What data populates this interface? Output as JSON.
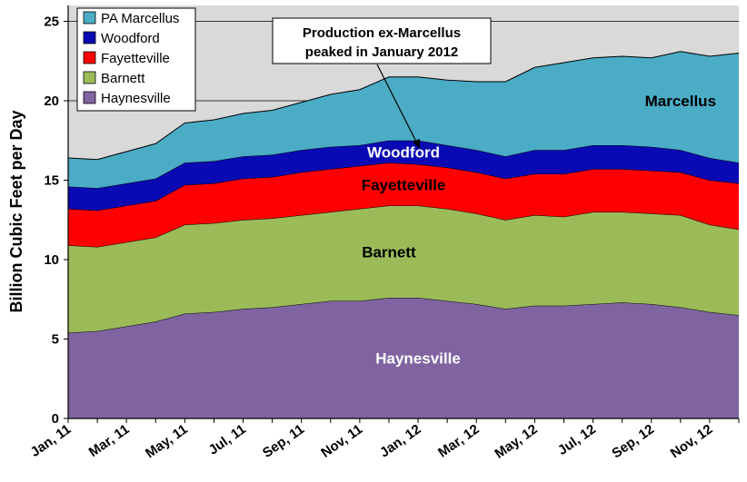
{
  "chart_data": {
    "type": "area",
    "stacked": true,
    "title": "",
    "xlabel": "",
    "ylabel": "Billion Cubic Feet per Day",
    "ylim": [
      0,
      26
    ],
    "yticks": [
      0,
      5,
      10,
      15,
      20,
      25
    ],
    "grid": "horizontal",
    "legend_position": "top-left",
    "x_tick_labels": [
      "Jan, 11",
      "Mar, 11",
      "May, 11",
      "Jul, 11",
      "Sep, 11",
      "Nov, 11",
      "Jan, 12",
      "Mar, 12",
      "May, 12",
      "Jul, 12",
      "Sep, 12",
      "Nov, 12"
    ],
    "x_months": [
      "Jan 2011",
      "Feb 2011",
      "Mar 2011",
      "Apr 2011",
      "May 2011",
      "Jun 2011",
      "Jul 2011",
      "Aug 2011",
      "Sep 2011",
      "Oct 2011",
      "Nov 2011",
      "Dec 2011",
      "Jan 2012",
      "Feb 2012",
      "Mar 2012",
      "Apr 2012",
      "May 2012",
      "Jun 2012",
      "Jul 2012",
      "Aug 2012",
      "Sep 2012",
      "Oct 2012",
      "Nov 2012",
      "Dec 2012"
    ],
    "series": [
      {
        "name": "Haynesville",
        "color": "#8064A2",
        "label_value": "Haynesville",
        "values": [
          5.4,
          5.5,
          5.8,
          6.1,
          6.6,
          6.7,
          6.9,
          7.0,
          7.2,
          7.4,
          7.4,
          7.6,
          7.6,
          7.4,
          7.2,
          6.9,
          7.1,
          7.1,
          7.2,
          7.3,
          7.2,
          7.0,
          6.7,
          6.5
        ]
      },
      {
        "name": "Barnett",
        "color": "#9BBB59",
        "label_value": "Barnett",
        "values": [
          5.5,
          5.3,
          5.3,
          5.3,
          5.6,
          5.6,
          5.6,
          5.6,
          5.6,
          5.6,
          5.8,
          5.8,
          5.8,
          5.8,
          5.7,
          5.6,
          5.7,
          5.6,
          5.8,
          5.7,
          5.7,
          5.8,
          5.5,
          5.4
        ]
      },
      {
        "name": "Fayetteville",
        "color": "#FF0000",
        "label_value": "Fayetteville",
        "values": [
          2.3,
          2.3,
          2.3,
          2.3,
          2.5,
          2.5,
          2.6,
          2.6,
          2.7,
          2.7,
          2.7,
          2.7,
          2.6,
          2.6,
          2.6,
          2.6,
          2.6,
          2.7,
          2.7,
          2.7,
          2.7,
          2.7,
          2.8,
          2.9
        ]
      },
      {
        "name": "Woodford",
        "color": "#0A0AB4",
        "label_value": "Woodford",
        "values": [
          1.4,
          1.4,
          1.4,
          1.4,
          1.4,
          1.4,
          1.4,
          1.4,
          1.4,
          1.4,
          1.3,
          1.4,
          1.5,
          1.4,
          1.4,
          1.4,
          1.5,
          1.5,
          1.5,
          1.5,
          1.5,
          1.4,
          1.4,
          1.3
        ]
      },
      {
        "name": "PA Marcellus",
        "color": "#4BACC6",
        "label_value": "Marcellus",
        "values": [
          1.8,
          1.8,
          2.0,
          2.2,
          2.5,
          2.6,
          2.7,
          2.8,
          3.0,
          3.3,
          3.5,
          4.0,
          4.0,
          4.1,
          4.3,
          4.7,
          5.2,
          5.5,
          5.5,
          5.6,
          5.6,
          6.2,
          6.4,
          6.9
        ]
      }
    ],
    "annotation": {
      "line1": "Production ex-Marcellus",
      "line2": "peaked in January 2012",
      "points_to": "Jan 2012"
    },
    "background_color": "#D9D9D9"
  }
}
